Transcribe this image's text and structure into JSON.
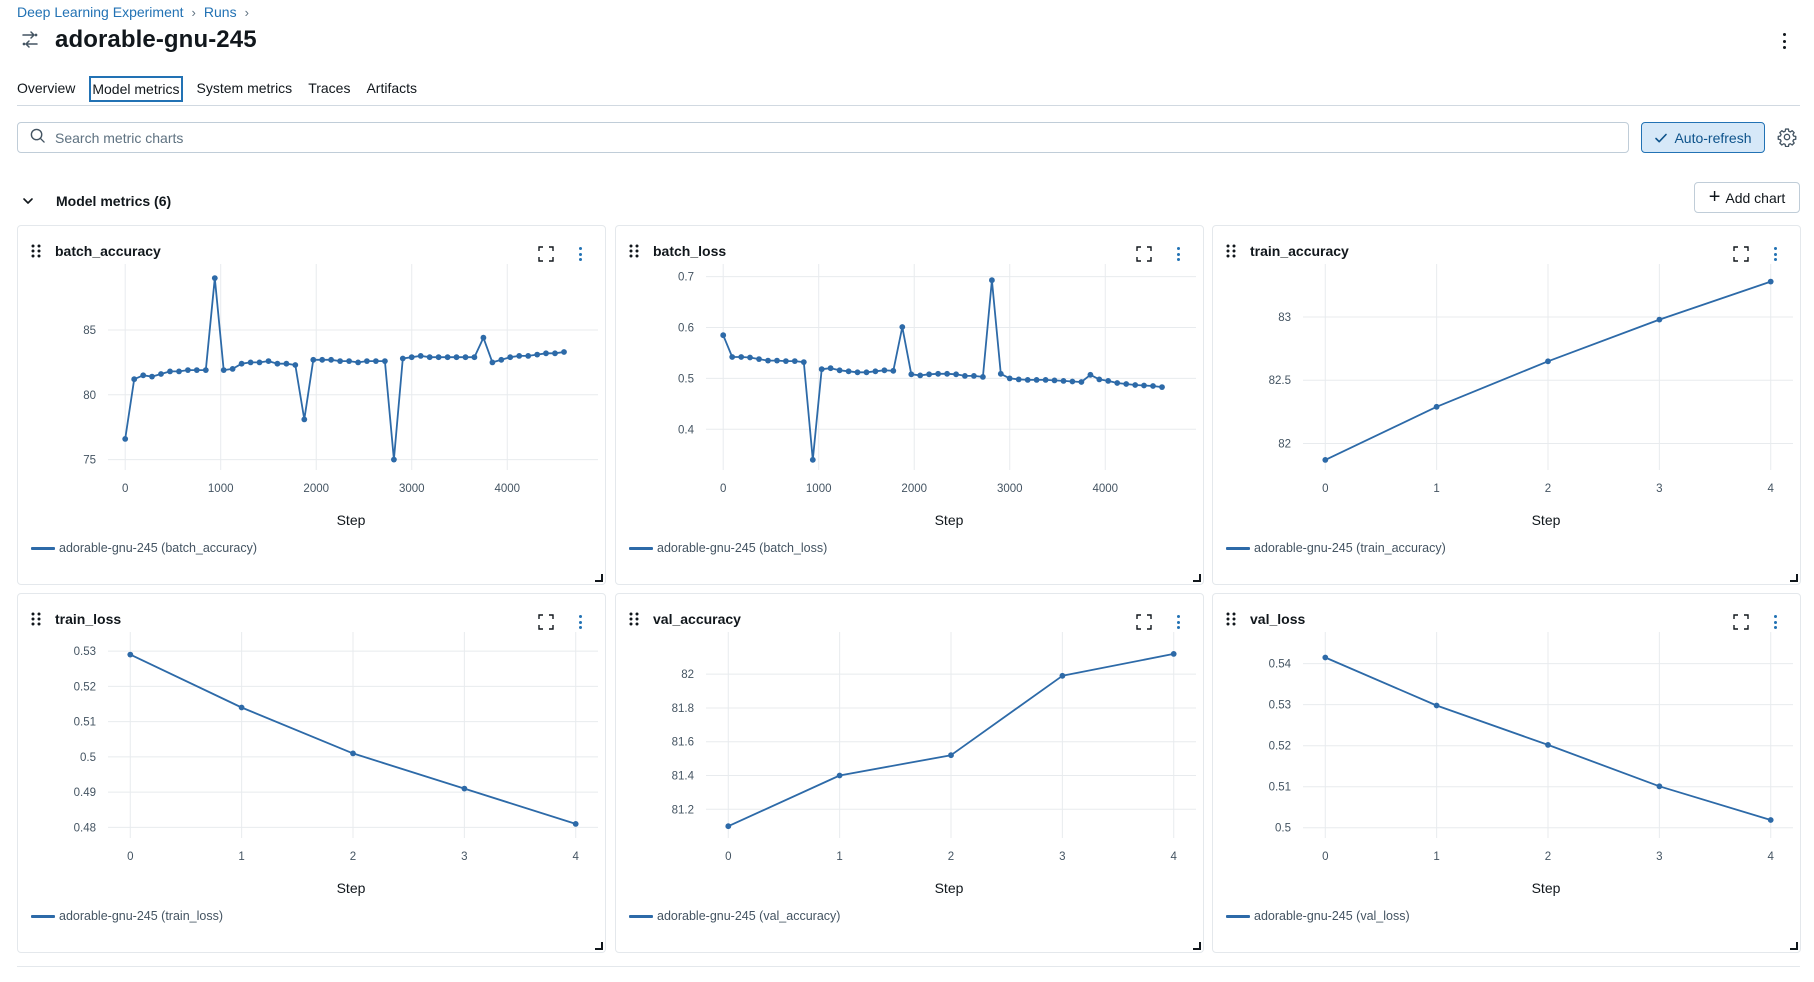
{
  "breadcrumb": {
    "items": [
      "Deep Learning Experiment",
      "Runs"
    ],
    "separator": "›"
  },
  "run": {
    "title": "adorable-gnu-245",
    "icon": "run-compare-icon"
  },
  "tabs": [
    {
      "label": "Overview",
      "active": false
    },
    {
      "label": "Model metrics",
      "active": true
    },
    {
      "label": "System metrics",
      "active": false
    },
    {
      "label": "Traces",
      "active": false
    },
    {
      "label": "Artifacts",
      "active": false
    }
  ],
  "search": {
    "placeholder": "Search metric charts",
    "value": ""
  },
  "auto_refresh": {
    "label": "Auto-refresh",
    "enabled": true
  },
  "section": {
    "title": "Model metrics (6)",
    "add_chart_label": "Add chart"
  },
  "colors": {
    "series": "#2d6aa8",
    "accent": "#2272b4",
    "grid": "#e8ebee"
  },
  "chart_data": [
    {
      "type": "line",
      "title": "batch_accuracy",
      "xlabel": "Step",
      "ylabel": "",
      "legend": "adorable-gnu-245 (batch_accuracy)",
      "xlim": [
        -180,
        4950
      ],
      "ylim": [
        74.2,
        89.7
      ],
      "xticks": [
        0,
        1000,
        2000,
        3000,
        4000
      ],
      "yticks": [
        75,
        80,
        85
      ],
      "ytick_labels": [
        "75",
        "80",
        "85"
      ],
      "series": [
        {
          "x": [
            0,
            94,
            188,
            281,
            375,
            469,
            563,
            656,
            750,
            844,
            938,
            1031,
            1125,
            1219,
            1313,
            1406,
            1500,
            1594,
            1688,
            1781,
            1875,
            1969,
            2063,
            2156,
            2250,
            2344,
            2438,
            2531,
            2625,
            2719,
            2813,
            2906,
            3000,
            3094,
            3188,
            3281,
            3375,
            3469,
            3563,
            3656,
            3750,
            3844,
            3938,
            4031,
            4125,
            4219,
            4313,
            4406,
            4500,
            4594
          ],
          "y": [
            76.6,
            81.2,
            81.5,
            81.4,
            81.6,
            81.8,
            81.8,
            81.9,
            81.9,
            81.9,
            89.0,
            81.9,
            82.0,
            82.4,
            82.5,
            82.5,
            82.6,
            82.4,
            82.4,
            82.3,
            78.1,
            82.7,
            82.7,
            82.7,
            82.6,
            82.6,
            82.5,
            82.6,
            82.6,
            82.6,
            75.0,
            82.8,
            82.9,
            83.0,
            82.9,
            82.9,
            82.9,
            82.9,
            82.9,
            82.9,
            84.4,
            82.5,
            82.7,
            82.9,
            83.0,
            83.0,
            83.1,
            83.2,
            83.2,
            83.3
          ]
        }
      ]
    },
    {
      "type": "line",
      "title": "batch_loss",
      "xlabel": "Step",
      "ylabel": "",
      "legend": "adorable-gnu-245 (batch_loss)",
      "xlim": [
        -180,
        4950
      ],
      "ylim": [
        0.32,
        0.715
      ],
      "xticks": [
        0,
        1000,
        2000,
        3000,
        4000
      ],
      "yticks": [
        0.4,
        0.5,
        0.6,
        0.7
      ],
      "ytick_labels": [
        "0.4",
        "0.5",
        "0.6",
        "0.7"
      ],
      "series": [
        {
          "x": [
            0,
            94,
            188,
            281,
            375,
            469,
            563,
            656,
            750,
            844,
            938,
            1031,
            1125,
            1219,
            1313,
            1406,
            1500,
            1594,
            1688,
            1781,
            1875,
            1969,
            2063,
            2156,
            2250,
            2344,
            2438,
            2531,
            2625,
            2719,
            2813,
            2906,
            3000,
            3094,
            3188,
            3281,
            3375,
            3469,
            3563,
            3656,
            3750,
            3844,
            3938,
            4031,
            4125,
            4219,
            4313,
            4406,
            4500,
            4594
          ],
          "y": [
            0.585,
            0.542,
            0.542,
            0.541,
            0.538,
            0.535,
            0.535,
            0.534,
            0.534,
            0.532,
            0.34,
            0.518,
            0.52,
            0.516,
            0.514,
            0.512,
            0.512,
            0.514,
            0.516,
            0.515,
            0.601,
            0.508,
            0.506,
            0.508,
            0.509,
            0.509,
            0.508,
            0.505,
            0.505,
            0.503,
            0.693,
            0.509,
            0.5,
            0.498,
            0.497,
            0.497,
            0.497,
            0.496,
            0.495,
            0.494,
            0.493,
            0.507,
            0.498,
            0.495,
            0.491,
            0.489,
            0.487,
            0.486,
            0.485,
            0.483
          ]
        }
      ]
    },
    {
      "type": "line",
      "title": "train_accuracy",
      "xlabel": "Step",
      "ylabel": "",
      "legend": "adorable-gnu-245 (train_accuracy)",
      "xlim": [
        -0.2,
        4.2
      ],
      "ylim": [
        81.79,
        83.38
      ],
      "xticks": [
        0,
        1,
        2,
        3,
        4
      ],
      "yticks": [
        82,
        82.5,
        83
      ],
      "ytick_labels": [
        "82",
        "82.5",
        "83"
      ],
      "series": [
        {
          "x": [
            0,
            1,
            2,
            3,
            4
          ],
          "y": [
            81.87,
            82.29,
            82.65,
            82.98,
            83.28
          ]
        }
      ]
    },
    {
      "type": "line",
      "title": "train_loss",
      "xlabel": "Step",
      "ylabel": "",
      "legend": "adorable-gnu-245 (train_loss)",
      "xlim": [
        -0.2,
        4.2
      ],
      "ylim": [
        0.477,
        0.534
      ],
      "xticks": [
        0,
        1,
        2,
        3,
        4
      ],
      "yticks": [
        0.48,
        0.49,
        0.5,
        0.51,
        0.52,
        0.53
      ],
      "ytick_labels": [
        "0.48",
        "0.49",
        "0.5",
        "0.51",
        "0.52",
        "0.53"
      ],
      "series": [
        {
          "x": [
            0,
            1,
            2,
            3,
            4
          ],
          "y": [
            0.529,
            0.514,
            0.501,
            0.491,
            0.481
          ]
        }
      ]
    },
    {
      "type": "line",
      "title": "val_accuracy",
      "xlabel": "Step",
      "ylabel": "",
      "legend": "adorable-gnu-245 (val_accuracy)",
      "xlim": [
        -0.2,
        4.2
      ],
      "ylim": [
        81.03,
        82.22
      ],
      "xticks": [
        0,
        1,
        2,
        3,
        4
      ],
      "yticks": [
        81.2,
        81.4,
        81.6,
        81.8,
        82
      ],
      "ytick_labels": [
        "81.2",
        "81.4",
        "81.6",
        "81.8",
        "82"
      ],
      "series": [
        {
          "x": [
            0,
            1,
            2,
            3,
            4
          ],
          "y": [
            81.1,
            81.4,
            81.52,
            81.99,
            82.12
          ]
        }
      ]
    },
    {
      "type": "line",
      "title": "val_loss",
      "xlabel": "Step",
      "ylabel": "",
      "legend": "adorable-gnu-245 (val_loss)",
      "xlim": [
        -0.2,
        4.2
      ],
      "ylim": [
        0.4975,
        0.5465
      ],
      "xticks": [
        0,
        1,
        2,
        3,
        4
      ],
      "yticks": [
        0.5,
        0.51,
        0.52,
        0.53,
        0.54
      ],
      "ytick_labels": [
        "0.5",
        "0.51",
        "0.52",
        "0.53",
        "0.54"
      ],
      "series": [
        {
          "x": [
            0,
            1,
            2,
            3,
            4
          ],
          "y": [
            0.5415,
            0.5298,
            0.5202,
            0.5101,
            0.5019
          ]
        }
      ]
    }
  ]
}
